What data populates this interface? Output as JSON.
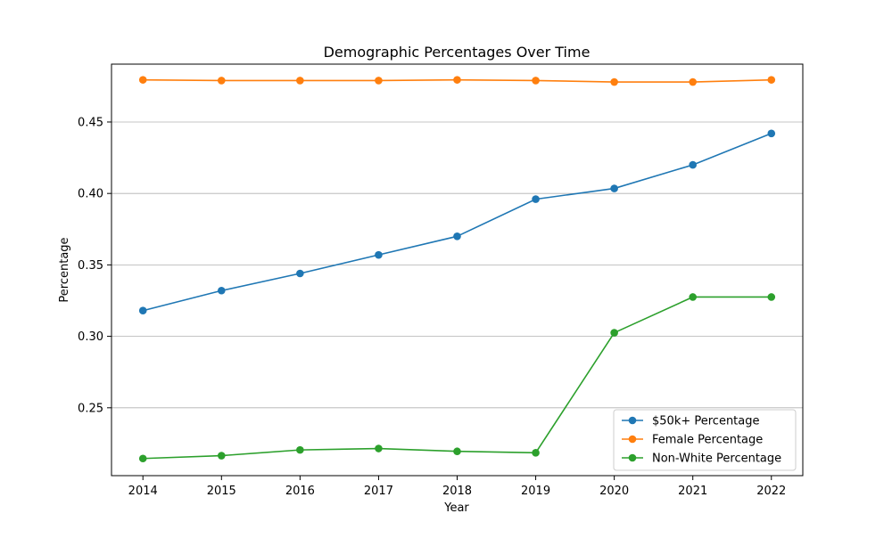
{
  "chart_data": {
    "type": "line",
    "title": "Demographic Percentages Over Time",
    "xlabel": "Year",
    "ylabel": "Percentage",
    "x": [
      2014,
      2015,
      2016,
      2017,
      2018,
      2019,
      2020,
      2021,
      2022
    ],
    "x_tick_labels": [
      "2014",
      "2015",
      "2016",
      "2017",
      "2018",
      "2019",
      "2020",
      "2021",
      "2022"
    ],
    "xlim": [
      2013.6,
      2022.4
    ],
    "ylim": [
      0.2025,
      0.4905
    ],
    "y_ticks": [
      0.25,
      0.3,
      0.35,
      0.4,
      0.45
    ],
    "y_tick_labels": [
      "0.25",
      "0.30",
      "0.35",
      "0.40",
      "0.45"
    ],
    "grid": "horizontal",
    "legend_position": "lower-right",
    "series": [
      {
        "name": "$50k+ Percentage",
        "color": "#1f77b4",
        "marker": "circle",
        "values": [
          0.318,
          0.332,
          0.344,
          0.357,
          0.37,
          0.396,
          0.4035,
          0.42,
          0.442
        ]
      },
      {
        "name": "Female Percentage",
        "color": "#ff7f0e",
        "marker": "circle",
        "values": [
          0.4795,
          0.479,
          0.479,
          0.479,
          0.4795,
          0.479,
          0.478,
          0.478,
          0.4795
        ]
      },
      {
        "name": "Non-White Percentage",
        "color": "#2ca02c",
        "marker": "circle",
        "values": [
          0.2145,
          0.2165,
          0.2205,
          0.2215,
          0.2195,
          0.2185,
          0.3025,
          0.3275,
          0.3275
        ]
      }
    ]
  }
}
